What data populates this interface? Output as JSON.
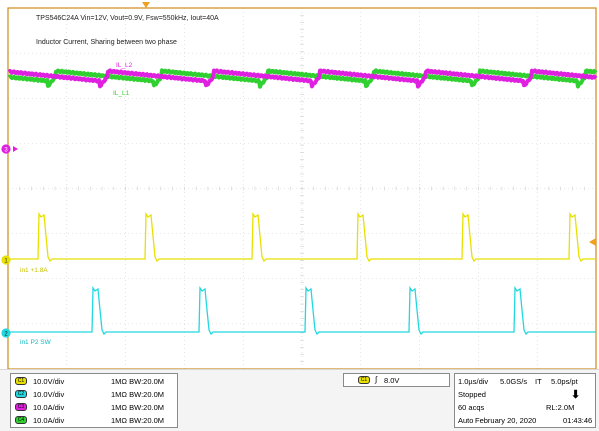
{
  "title_line1": "TPS546C24A Vin=12V, Vout=0.9V, Fsw=550kHz, Iout=40A",
  "title_line2": "Inductor Current, Sharing between two phase",
  "trace_labels": {
    "il2": "IL_L2",
    "il1": "IL_L1",
    "sw1": "in1 +1.8A",
    "sw2": "in1 P2 SW"
  },
  "channel_markers": {
    "m3": "3",
    "m1": "1",
    "m2": "2"
  },
  "channels": [
    {
      "badge": "C1",
      "scale": "10.0V/div",
      "impedance": "1MΩ",
      "bw": "BW:20.0M",
      "color": "#e8e000"
    },
    {
      "badge": "C2",
      "scale": "10.0V/div",
      "impedance": "1MΩ",
      "bw": "BW:20.0M",
      "color": "#20d8e0"
    },
    {
      "badge": "C3",
      "scale": "10.0A/div",
      "impedance": "1MΩ",
      "bw": "BW:20.0M",
      "color": "#e020e0"
    },
    {
      "badge": "C4",
      "scale": "10.0A/div",
      "impedance": "1MΩ",
      "bw": "BW:20.0M",
      "color": "#30d030"
    }
  ],
  "trigger": {
    "badge": "C1",
    "level": "8.0V"
  },
  "timebase": {
    "scale": "1.0µs/div",
    "rate": "5.0GS/s",
    "it": "IT",
    "pt": "5.0ps/pt",
    "state": "Stopped",
    "acqs": "60 acqs",
    "rl": "RL:2.0M",
    "mode": "Auto",
    "date": "February 20, 2020",
    "time": "01:43:46"
  },
  "colors": {
    "grid": "#cfcfcf",
    "border": "#d08a1a",
    "ch1": "#e8e000",
    "ch2": "#20d8e0",
    "ch3": "#e020e0",
    "ch4": "#30d030",
    "trig_marker": "#f0a020"
  }
}
